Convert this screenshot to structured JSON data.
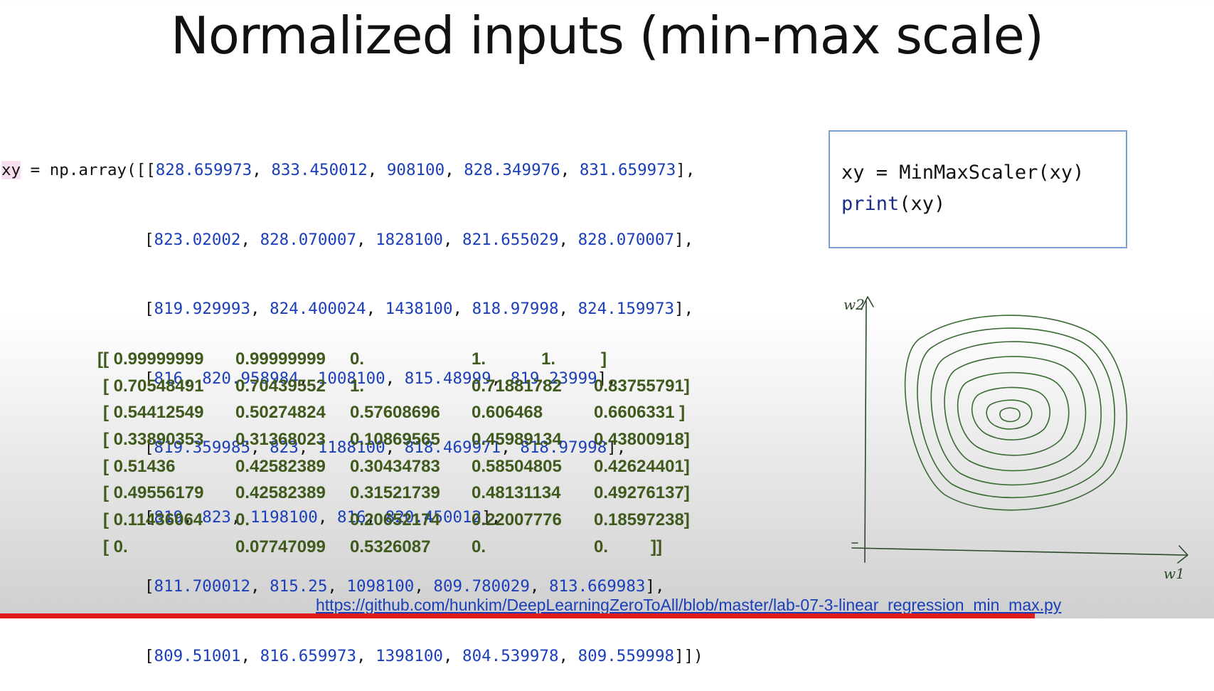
{
  "slide": {
    "title": "Normalized inputs (min-max scale)"
  },
  "code": {
    "prefix": "xy = np.array([",
    "var": "xy",
    "assign": " = np.array([",
    "rows": [
      [
        "828.659973",
        "833.450012",
        "908100",
        "828.349976",
        "831.659973"
      ],
      [
        "823.02002",
        "828.070007",
        "1828100",
        "821.655029",
        "828.070007"
      ],
      [
        "819.929993",
        "824.400024",
        "1438100",
        "818.97998",
        "824.159973"
      ],
      [
        "816",
        "820.958984",
        "1008100",
        "815.48999",
        "819.23999"
      ],
      [
        "819.359985",
        "823",
        "1188100",
        "818.469971",
        "818.97998"
      ],
      [
        "819",
        "823",
        "1198100",
        "816",
        "820.450012"
      ],
      [
        "811.700012",
        "815.25",
        "1098100",
        "809.780029",
        "813.669983"
      ],
      [
        "809.51001",
        "816.659973",
        "1398100",
        "804.539978",
        "809.559998"
      ]
    ],
    "closing_last": "]])"
  },
  "scaled_output": {
    "rows": [
      [
        "[[ 0.99999999",
        "0.99999999",
        "0.",
        "1.",
        "1.",
        "]"
      ],
      [
        "[ 0.70548491",
        "0.70439552",
        "1.",
        "0.71881782",
        "0.83755791]",
        ""
      ],
      [
        "[ 0.54412549",
        "0.50274824",
        "0.57608696",
        "0.606468",
        "0.6606331 ]",
        ""
      ],
      [
        "[ 0.33890353",
        "0.31368023",
        "0.10869565",
        "0.45989134",
        "0.43800918]",
        ""
      ],
      [
        "[ 0.51436",
        "0.42582389",
        "0.30434783",
        "0.58504805",
        "0.42624401]",
        ""
      ],
      [
        "[ 0.49556179",
        "0.42582389",
        "0.31521739",
        "0.48131134",
        "0.49276137]",
        ""
      ],
      [
        "[ 0.11436064",
        "0.",
        "0.20652174",
        "0.22007776",
        "0.18597238]",
        ""
      ],
      [
        "[ 0.",
        "0.07747099",
        "0.5326087",
        "0.",
        "0.",
        "]]"
      ]
    ]
  },
  "code_box": {
    "line1": "xy = MinMaxScaler(xy)",
    "print_kw": "print",
    "print_rest": "(xy)"
  },
  "sketch": {
    "y_axis_label": "w2",
    "x_axis_label": "w1"
  },
  "footer": {
    "link": "https://github.com/hunkim/DeepLearningZeroToAll/blob/master/lab-07-3-linear_regression_min_max.py"
  },
  "colors": {
    "code_number": "#1a3fb8",
    "output_text": "#3f5a1c",
    "box_border": "#7b9fd2",
    "progress_bar": "#e01b1b"
  }
}
